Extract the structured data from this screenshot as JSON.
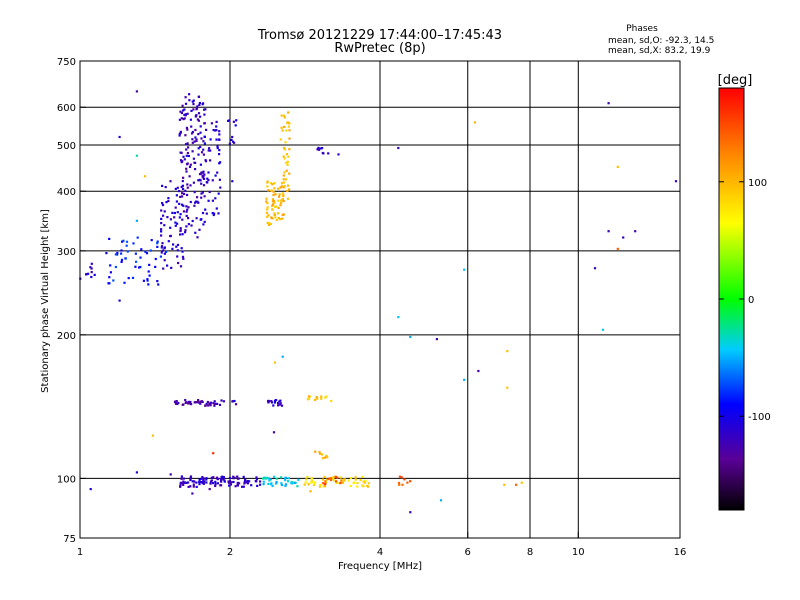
{
  "chart_data": {
    "type": "scatter",
    "title": "Tromsø 20121229 17:44:00–17:45:43",
    "subtitle": "RwPretec (8p)",
    "xlabel": "Frequency [MHz]",
    "ylabel": "Stationary phase Virtual Height [km]",
    "x_scale": "log",
    "y_scale": "log",
    "xlim": [
      1,
      16
    ],
    "ylim": [
      75,
      750
    ],
    "x_ticks": [
      1,
      2,
      4,
      6,
      8,
      10,
      16
    ],
    "x_tick_labels": [
      "1",
      "2",
      "4",
      "6",
      "8",
      "10",
      "16"
    ],
    "y_ticks": [
      75,
      100,
      200,
      300,
      400,
      500,
      600,
      750
    ],
    "y_tick_labels": [
      "75",
      "100",
      "200",
      "300",
      "400",
      "500",
      "600",
      "750"
    ],
    "grid": true,
    "stats": {
      "heading": "Phases",
      "line_o": "mean, sd,O: -92.3, 14.5",
      "line_x": "mean, sd,X:  83.2, 19.9"
    },
    "colorbar": {
      "label": "[deg]",
      "range": [
        -180,
        180
      ],
      "ticks": [
        -100,
        0,
        100
      ],
      "tick_labels": [
        "-100",
        "0",
        "100"
      ]
    },
    "clusters": [
      {
        "x_range": [
          1.0,
          1.07
        ],
        "y_range": [
          262,
          282
        ],
        "phase": -115,
        "n": 10,
        "seed": 1
      },
      {
        "x_range": [
          1.12,
          1.5
        ],
        "y_range": [
          255,
          320
        ],
        "phase": -85,
        "n": 55,
        "seed": 2
      },
      {
        "x_range": [
          1.45,
          1.62
        ],
        "y_range": [
          275,
          420
        ],
        "phase": -112,
        "n": 70,
        "seed": 3
      },
      {
        "x_range": [
          1.58,
          1.78
        ],
        "y_range": [
          320,
          640
        ],
        "phase": -118,
        "n": 160,
        "seed": 4
      },
      {
        "x_range": [
          1.76,
          1.92
        ],
        "y_range": [
          340,
          600
        ],
        "phase": -110,
        "n": 55,
        "seed": 5
      },
      {
        "x_range": [
          1.98,
          2.06
        ],
        "y_range": [
          470,
          590
        ],
        "phase": -110,
        "n": 10,
        "seed": 6
      },
      {
        "x_range": [
          2.36,
          2.58
        ],
        "y_range": [
          340,
          420
        ],
        "phase": 100,
        "n": 65,
        "seed": 7
      },
      {
        "x_range": [
          2.52,
          2.64
        ],
        "y_range": [
          380,
          600
        ],
        "phase": 95,
        "n": 40,
        "seed": 8
      },
      {
        "x_range": [
          2.95,
          3.15
        ],
        "y_range": [
          478,
          495
        ],
        "phase": -118,
        "n": 8,
        "seed": 9
      },
      {
        "x_range": [
          1.55,
          1.95
        ],
        "y_range": [
          142,
          146
        ],
        "phase": -125,
        "n": 45,
        "seed": 10
      },
      {
        "x_range": [
          2.01,
          2.06
        ],
        "y_range": [
          142,
          146
        ],
        "phase": -115,
        "n": 4,
        "seed": 11
      },
      {
        "x_range": [
          2.35,
          2.55
        ],
        "y_range": [
          142,
          146
        ],
        "phase": -112,
        "n": 18,
        "seed": 12
      },
      {
        "x_range": [
          2.85,
          3.2
        ],
        "y_range": [
          145,
          149
        ],
        "phase": 95,
        "n": 12,
        "seed": 13
      },
      {
        "x_range": [
          2.95,
          3.15
        ],
        "y_range": [
          110,
          114
        ],
        "phase": 100,
        "n": 8,
        "seed": 14
      },
      {
        "x_range": [
          1.58,
          2.3
        ],
        "y_range": [
          96,
          101
        ],
        "phase": -115,
        "n": 110,
        "seed": 15
      },
      {
        "x_range": [
          2.3,
          2.75
        ],
        "y_range": [
          96,
          101
        ],
        "phase": -40,
        "n": 35,
        "seed": 16
      },
      {
        "x_range": [
          2.75,
          3.8
        ],
        "y_range": [
          96,
          101
        ],
        "phase": 85,
        "n": 55,
        "seed": 17
      },
      {
        "x_range": [
          2.95,
          3.4
        ],
        "y_range": [
          97,
          101
        ],
        "phase": 140,
        "n": 12,
        "seed": 18
      },
      {
        "x_range": [
          4.3,
          4.6
        ],
        "y_range": [
          97,
          101
        ],
        "phase": 145,
        "n": 8,
        "seed": 19
      }
    ],
    "points": [
      {
        "x": 1.05,
        "y": 95,
        "phase": -110
      },
      {
        "x": 1.3,
        "y": 648,
        "phase": -130
      },
      {
        "x": 1.2,
        "y": 520,
        "phase": -112
      },
      {
        "x": 1.3,
        "y": 475,
        "phase": -30
      },
      {
        "x": 1.35,
        "y": 430,
        "phase": 95
      },
      {
        "x": 1.3,
        "y": 347,
        "phase": -50
      },
      {
        "x": 1.2,
        "y": 236,
        "phase": -112
      },
      {
        "x": 1.4,
        "y": 123,
        "phase": 95
      },
      {
        "x": 1.3,
        "y": 103,
        "phase": -110
      },
      {
        "x": 1.52,
        "y": 102,
        "phase": -125
      },
      {
        "x": 1.68,
        "y": 93,
        "phase": -125
      },
      {
        "x": 1.85,
        "y": 113,
        "phase": 160
      },
      {
        "x": 1.82,
        "y": 95,
        "phase": -130
      },
      {
        "x": 2.02,
        "y": 420,
        "phase": -110
      },
      {
        "x": 2.45,
        "y": 125,
        "phase": -125
      },
      {
        "x": 2.55,
        "y": 180,
        "phase": -50
      },
      {
        "x": 2.46,
        "y": 175,
        "phase": 95
      },
      {
        "x": 2.9,
        "y": 94,
        "phase": 100
      },
      {
        "x": 3.3,
        "y": 478,
        "phase": -118
      },
      {
        "x": 4.35,
        "y": 493,
        "phase": -118
      },
      {
        "x": 4.35,
        "y": 218,
        "phase": -45
      },
      {
        "x": 4.6,
        "y": 198,
        "phase": -50
      },
      {
        "x": 5.2,
        "y": 196,
        "phase": -125
      },
      {
        "x": 4.6,
        "y": 85,
        "phase": -120
      },
      {
        "x": 5.3,
        "y": 90,
        "phase": -50
      },
      {
        "x": 5.9,
        "y": 274,
        "phase": -45
      },
      {
        "x": 5.9,
        "y": 161,
        "phase": -50
      },
      {
        "x": 6.2,
        "y": 558,
        "phase": 100
      },
      {
        "x": 6.3,
        "y": 168,
        "phase": -125
      },
      {
        "x": 7.2,
        "y": 185,
        "phase": 95
      },
      {
        "x": 7.2,
        "y": 155,
        "phase": 95
      },
      {
        "x": 7.1,
        "y": 97,
        "phase": 95
      },
      {
        "x": 7.5,
        "y": 97,
        "phase": 140
      },
      {
        "x": 7.7,
        "y": 98,
        "phase": 95
      },
      {
        "x": 11.5,
        "y": 612,
        "phase": -120
      },
      {
        "x": 12.0,
        "y": 450,
        "phase": 95
      },
      {
        "x": 11.5,
        "y": 330,
        "phase": -120
      },
      {
        "x": 12.3,
        "y": 320,
        "phase": -120
      },
      {
        "x": 12.0,
        "y": 303,
        "phase": 140
      },
      {
        "x": 13.0,
        "y": 330,
        "phase": -125
      },
      {
        "x": 10.8,
        "y": 276,
        "phase": -120
      },
      {
        "x": 11.2,
        "y": 205,
        "phase": -40
      },
      {
        "x": 15.7,
        "y": 420,
        "phase": -120
      }
    ]
  }
}
